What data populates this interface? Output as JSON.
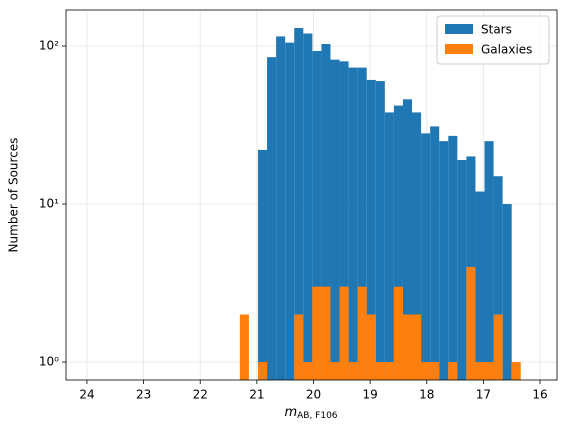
{
  "chart_data": {
    "type": "histogram",
    "x_label": "m",
    "x_label_sub": "AB, F106",
    "y_label": "Number of Sources",
    "bins": [
      21.3,
      21.14,
      20.98,
      20.82,
      20.66,
      20.5,
      20.34,
      20.18,
      20.02,
      19.86,
      19.7,
      19.54,
      19.38,
      19.22,
      19.06,
      18.9,
      18.74,
      18.58,
      18.42,
      18.26,
      18.1,
      17.94,
      17.78,
      17.62,
      17.46,
      17.3,
      17.14,
      16.98,
      16.82,
      16.66,
      16.5,
      16.34
    ],
    "series": [
      {
        "name": "Stars",
        "color": "#1f77b4",
        "values": [
          0,
          0,
          22,
          85,
          115,
          105,
          130,
          120,
          93,
          103,
          82,
          80,
          73,
          73,
          61,
          60,
          38,
          42,
          46,
          38,
          28,
          31,
          25,
          27,
          19,
          20,
          12,
          25,
          15,
          10,
          0
        ]
      },
      {
        "name": "Galaxies",
        "color": "#ff7f0e",
        "values": [
          2,
          0,
          1,
          0,
          0,
          0,
          2,
          1,
          3,
          3,
          1,
          3,
          1,
          3,
          2,
          1,
          1,
          3,
          2,
          2,
          1,
          1,
          0,
          1,
          0,
          4,
          1,
          1,
          2,
          0,
          1
        ]
      }
    ],
    "xlim": [
      24.37,
      15.7
    ],
    "xticks": [
      24,
      23,
      22,
      21,
      20,
      19,
      18,
      17,
      16
    ],
    "ylim": [
      0.77,
      169
    ],
    "yticks": [
      {
        "value": 1,
        "label": "10⁰"
      },
      {
        "value": 10,
        "label": "10¹"
      },
      {
        "value": 100,
        "label": "10²"
      }
    ],
    "log_y": true,
    "grid": true,
    "legend": "upper right"
  }
}
